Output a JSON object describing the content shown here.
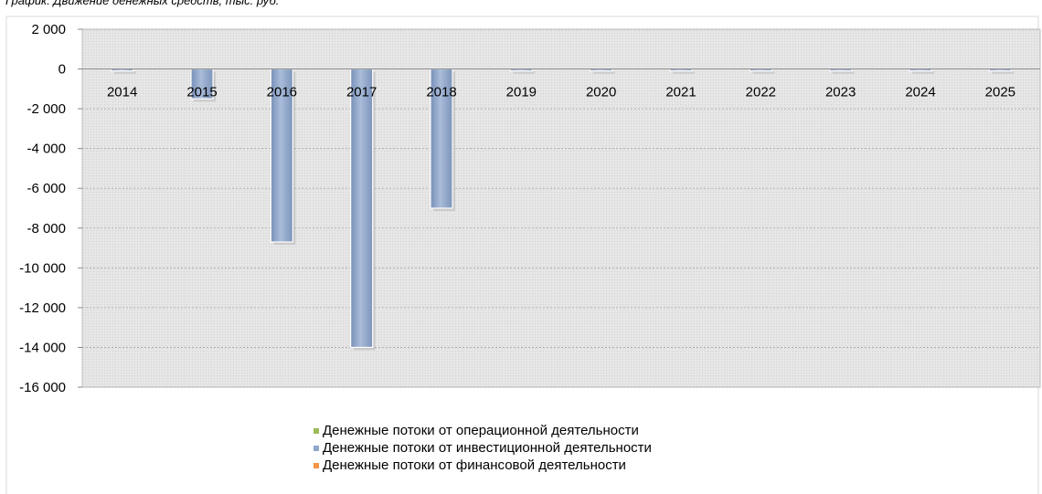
{
  "chart_data": {
    "type": "bar",
    "title": "График: Движение денежных средств, тыс. руб.",
    "categories": [
      "2014",
      "2015",
      "2016",
      "2017",
      "2018",
      "2019",
      "2020",
      "2021",
      "2022",
      "2023",
      "2024",
      "2025"
    ],
    "series": [
      {
        "name": "Денежные потоки от операционной деятельности",
        "color": "#9bbb59",
        "values": [
          0,
          0,
          0,
          0,
          0,
          0,
          0,
          0,
          0,
          0,
          0,
          0
        ]
      },
      {
        "name": "Денежные потоки от инвестиционной деятельности",
        "color": "#8ea7cc",
        "values": [
          -100,
          -1500,
          -8700,
          -14000,
          -7000,
          -100,
          -100,
          -100,
          -100,
          -100,
          -100,
          -100
        ]
      },
      {
        "name": "Денежные потоки от финансовой деятельности",
        "color": "#f79646",
        "values": [
          0,
          0,
          0,
          0,
          0,
          0,
          0,
          0,
          0,
          0,
          0,
          0
        ]
      }
    ],
    "yticks": [
      "2 000",
      "0",
      "-2 000",
      "-4 000",
      "-6 000",
      "-8 000",
      "-10 000",
      "-12 000",
      "-14 000",
      "-16 000"
    ],
    "ylim": [
      -16000,
      2000
    ],
    "grid": true,
    "legend_position": "bottom"
  }
}
